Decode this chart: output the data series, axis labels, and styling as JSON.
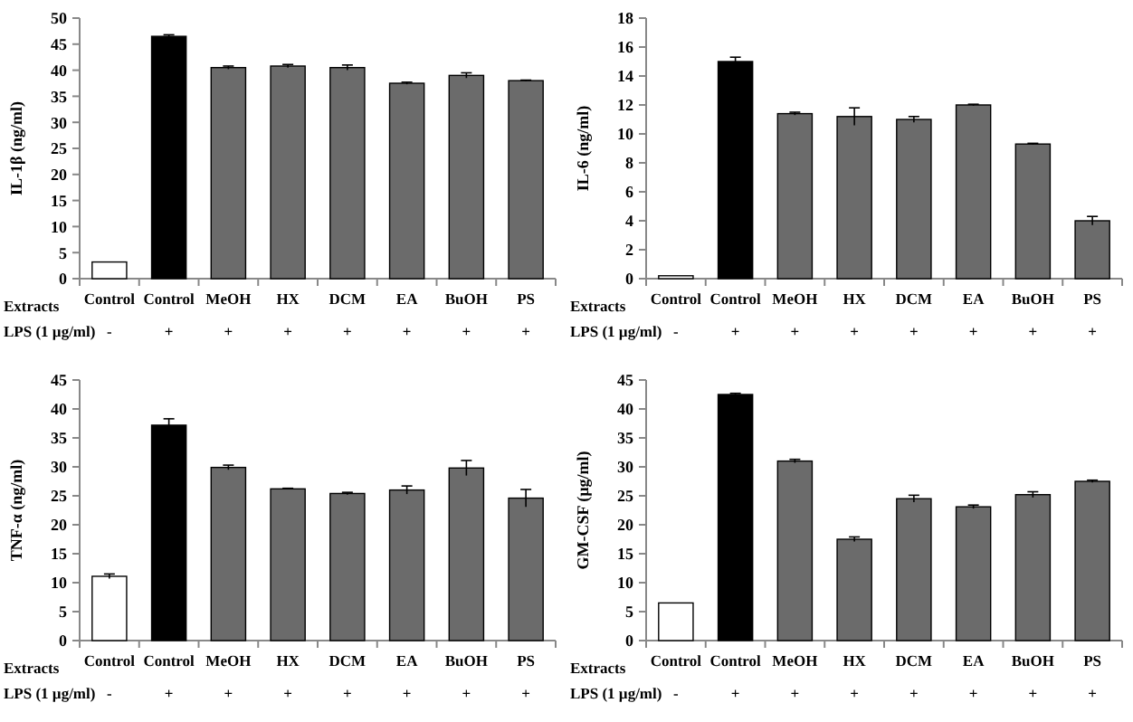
{
  "chart_data": [
    {
      "type": "bar",
      "ylabel": "IL-1β (ng/ml)",
      "categories": [
        "Control",
        "Control",
        "MeOH",
        "HX",
        "DCM",
        "EA",
        "BuOH",
        "PS"
      ],
      "values": [
        3.2,
        46.5,
        40.5,
        40.8,
        40.5,
        37.5,
        39,
        38
      ],
      "errors": [
        null,
        0.3,
        0.3,
        0.3,
        0.5,
        0.2,
        0.5,
        0.1
      ],
      "colors": [
        "#ffffff",
        "#000000",
        "#6b6b6b",
        "#6b6b6b",
        "#6b6b6b",
        "#6b6b6b",
        "#6b6b6b",
        "#6b6b6b"
      ],
      "ylim": [
        0,
        50
      ],
      "yticks": [
        0,
        5,
        10,
        15,
        20,
        25,
        30,
        35,
        40,
        45,
        50
      ],
      "annotations": [
        "Extracts",
        "LPS (1 µg/ml)",
        "-",
        "+",
        "+",
        "+",
        "+",
        "+",
        "+",
        "+"
      ]
    },
    {
      "type": "bar",
      "ylabel": "IL-6 (ng/ml)",
      "categories": [
        "Control",
        "Control",
        "MeOH",
        "HX",
        "DCM",
        "EA",
        "BuOH",
        "PS"
      ],
      "values": [
        0.2,
        15,
        11.4,
        11.2,
        11,
        12,
        9.3,
        4
      ],
      "errors": [
        null,
        0.3,
        0.1,
        0.6,
        0.2,
        0.05,
        0.05,
        0.3
      ],
      "colors": [
        "#ffffff",
        "#000000",
        "#6b6b6b",
        "#6b6b6b",
        "#6b6b6b",
        "#6b6b6b",
        "#6b6b6b",
        "#6b6b6b"
      ],
      "ylim": [
        0,
        18
      ],
      "yticks": [
        0,
        2,
        4,
        6,
        8,
        10,
        12,
        14,
        16,
        18
      ],
      "annotations": [
        "Extracts",
        "LPS (1 µg/ml)",
        "-",
        "+",
        "+",
        "+",
        "+",
        "+",
        "+",
        "+"
      ]
    },
    {
      "type": "bar",
      "ylabel": "TNF-α (ng/ml)",
      "categories": [
        "Control",
        "Control",
        "MeOH",
        "HX",
        "DCM",
        "EA",
        "BuOH",
        "PS"
      ],
      "values": [
        11.1,
        37.2,
        29.9,
        26.2,
        25.4,
        26,
        29.8,
        24.6
      ],
      "errors": [
        0.4,
        1.1,
        0.4,
        0.1,
        0.2,
        0.7,
        1.3,
        1.5
      ],
      "colors": [
        "#ffffff",
        "#000000",
        "#6b6b6b",
        "#6b6b6b",
        "#6b6b6b",
        "#6b6b6b",
        "#6b6b6b",
        "#6b6b6b"
      ],
      "ylim": [
        0,
        45
      ],
      "yticks": [
        0,
        5,
        10,
        15,
        20,
        25,
        30,
        35,
        40,
        45
      ],
      "annotations": [
        "Extracts",
        "LPS (1 µg/ml)",
        "-",
        "+",
        "+",
        "+",
        "+",
        "+",
        "+",
        "+"
      ]
    },
    {
      "type": "bar",
      "ylabel": "GM-CSF (µg/ml)",
      "categories": [
        "Control",
        "Control",
        "MeOH",
        "HX",
        "DCM",
        "EA",
        "BuOH",
        "PS"
      ],
      "values": [
        6.5,
        42.5,
        31,
        17.5,
        24.5,
        23.1,
        25.2,
        27.5
      ],
      "errors": [
        null,
        0.2,
        0.3,
        0.4,
        0.6,
        0.3,
        0.5,
        0.2
      ],
      "colors": [
        "#ffffff",
        "#000000",
        "#6b6b6b",
        "#6b6b6b",
        "#6b6b6b",
        "#6b6b6b",
        "#6b6b6b",
        "#6b6b6b"
      ],
      "ylim": [
        0,
        45
      ],
      "yticks": [
        0,
        5,
        10,
        15,
        20,
        25,
        30,
        35,
        40,
        45
      ],
      "annotations": [
        "Extracts",
        "LPS (1 µg/ml)",
        "-",
        "+",
        "+",
        "+",
        "+",
        "+",
        "+",
        "+"
      ]
    }
  ]
}
